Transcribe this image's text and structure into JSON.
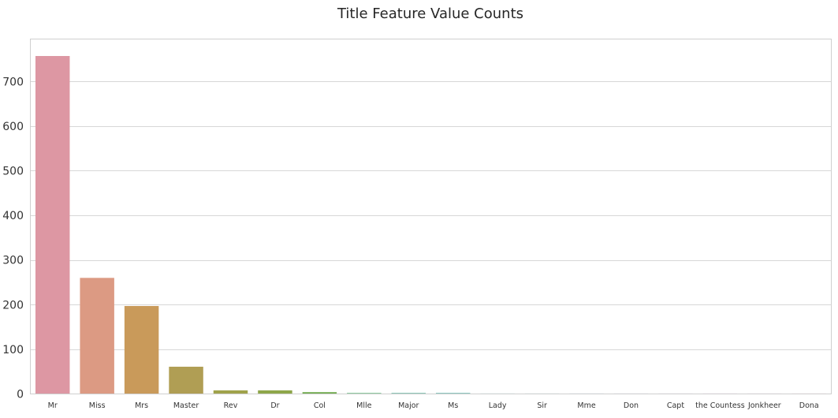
{
  "chart_data": {
    "type": "bar",
    "title": "Title Feature Value Counts",
    "xlabel": "",
    "ylabel": "",
    "categories": [
      "Mr",
      "Miss",
      "Mrs",
      "Master",
      "Rev",
      "Dr",
      "Col",
      "Mlle",
      "Major",
      "Ms",
      "Lady",
      "Sir",
      "Mme",
      "Don",
      "Capt",
      "the Countess",
      "Jonkheer",
      "Dona"
    ],
    "values": [
      757,
      260,
      197,
      61,
      8,
      8,
      4,
      2,
      2,
      2,
      1,
      1,
      1,
      1,
      1,
      1,
      1,
      1
    ],
    "colors": [
      "#dd97a3",
      "#dc9a83",
      "#c99a5a",
      "#b09e54",
      "#a0a24b",
      "#8ea64a",
      "#6ea94b",
      "#4fae6c",
      "#4eab91",
      "#4eaa9f",
      "#4fa8ac",
      "#52a6bb",
      "#5fa0cc",
      "#8b97d8",
      "#ad8fdb",
      "#c88ad6",
      "#d78cc4",
      "#de90b1"
    ],
    "yticks": [
      0,
      100,
      200,
      300,
      400,
      500,
      600,
      700
    ],
    "ylim": [
      0,
      795
    ],
    "grid": true,
    "legend": "none"
  }
}
